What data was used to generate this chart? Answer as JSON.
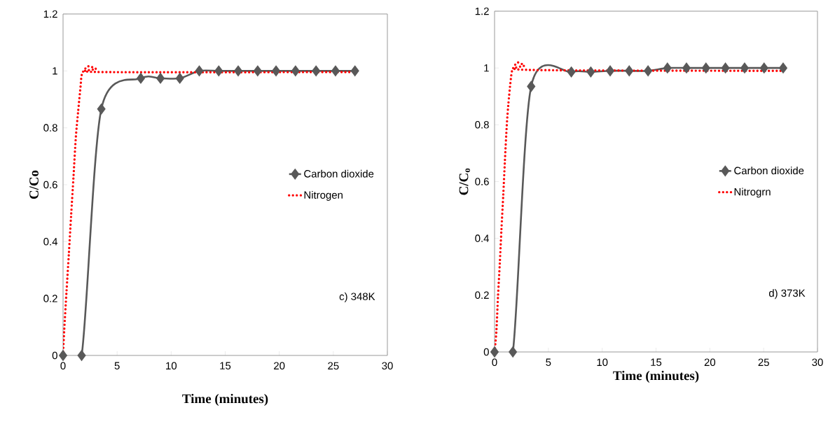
{
  "chart_data": [
    {
      "type": "line",
      "xlabel": "Time (minutes)",
      "ylabel": "C/Co",
      "xlim": [
        0,
        30
      ],
      "ylim": [
        0,
        1.2
      ],
      "xticks": [
        0,
        5,
        10,
        15,
        20,
        25,
        30
      ],
      "yticks": [
        0,
        0.2,
        0.4,
        0.6,
        0.8,
        1,
        1.2
      ],
      "legend": "right",
      "annotations": [
        "c) 348K"
      ],
      "series": [
        {
          "name": "Carbon dioxide",
          "color": "#595959",
          "marker": "diamond",
          "line_style": "solid",
          "x": [
            0,
            1.72,
            3.54,
            7.19,
            9.01,
            10.8,
            12.6,
            14.4,
            16.2,
            18.0,
            19.7,
            21.5,
            23.4,
            25.2,
            27.0
          ],
          "values": [
            0,
            0,
            0.866,
            0.974,
            0.974,
            0.974,
            1.0,
            1.0,
            1.0,
            1.0,
            1.0,
            1.0,
            1.0,
            1.0,
            1.0
          ]
        },
        {
          "name": "Nitrogen",
          "color": "#ff0000",
          "marker": "none",
          "line_style": "dotted",
          "x": [
            0,
            0.11,
            0.32,
            0.54,
            0.75,
            0.97,
            1.18,
            1.39,
            1.61,
            1.76,
            2.32,
            3.05,
            3.54,
            27.0
          ],
          "values": [
            0,
            0.089,
            0.224,
            0.359,
            0.494,
            0.63,
            0.765,
            0.855,
            0.941,
            0.99,
            1.016,
            1.007,
            0.996,
            0.996
          ]
        }
      ]
    },
    {
      "type": "line",
      "xlabel": "Time (minutes)",
      "ylabel": "C/C$_{o}$",
      "xlim": [
        0,
        30
      ],
      "ylim": [
        0,
        1.2
      ],
      "xticks": [
        0,
        5,
        10,
        15,
        20,
        25,
        30
      ],
      "yticks": [
        0,
        0.2,
        0.4,
        0.6,
        0.8,
        1,
        1.2
      ],
      "legend": "right",
      "annotations": [
        "d) 373K"
      ],
      "series": [
        {
          "name": "Carbon dioxide",
          "color": "#595959",
          "marker": "diamond",
          "line_style": "solid",
          "x": [
            0,
            1.7,
            3.4,
            7.13,
            8.94,
            10.74,
            12.51,
            14.26,
            16.06,
            17.83,
            19.64,
            21.45,
            23.23,
            25.04,
            26.81
          ],
          "values": [
            0,
            0,
            0.935,
            0.986,
            0.986,
            0.99,
            0.99,
            0.99,
            1.0,
            1.0,
            1.0,
            1.0,
            1.0,
            1.0,
            1.0
          ]
        },
        {
          "name": "Nitrogrn",
          "color": "#ff0000",
          "marker": "none",
          "line_style": "dotted",
          "x": [
            0,
            0.17,
            0.32,
            0.49,
            0.64,
            0.81,
            0.96,
            1.13,
            1.28,
            1.49,
            1.66,
            2.13,
            2.77,
            3.4,
            26.81
          ],
          "values": [
            0,
            0.073,
            0.196,
            0.314,
            0.432,
            0.554,
            0.672,
            0.795,
            0.872,
            0.954,
            0.994,
            1.019,
            1.009,
            0.993,
            0.99
          ]
        }
      ]
    }
  ]
}
